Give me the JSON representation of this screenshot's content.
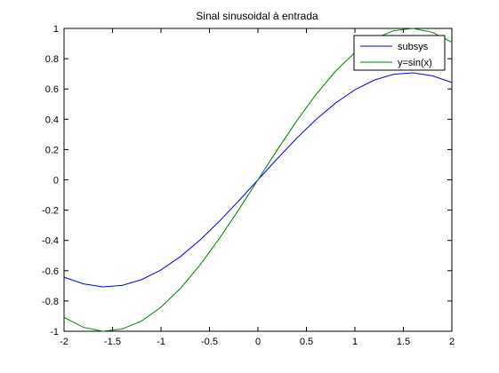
{
  "chart_data": {
    "type": "line",
    "title": "Sinal sinusoidal à entrada",
    "xlabel": "",
    "ylabel": "",
    "xlim": [
      -2,
      2
    ],
    "ylim": [
      -1,
      1
    ],
    "x_ticks": [
      -2,
      -1.5,
      -1,
      -0.5,
      0,
      0.5,
      1,
      1.5,
      2
    ],
    "y_ticks": [
      -1,
      -0.8,
      -0.6,
      -0.4,
      -0.2,
      0,
      0.2,
      0.4,
      0.6,
      0.8,
      1
    ],
    "x_tick_labels": [
      "-2",
      "-1.5",
      "-1",
      "-0.5",
      "0",
      "0.5",
      "1",
      "1.5",
      "2"
    ],
    "y_tick_labels": [
      "-1",
      "-0.8",
      "-0.6",
      "-0.4",
      "-0.2",
      "0",
      "0.2",
      "0.4",
      "0.6",
      "0.8",
      "1"
    ],
    "grid": false,
    "legend_position": "top-right",
    "x": [
      -2,
      -1.8,
      -1.6,
      -1.4,
      -1.2,
      -1,
      -0.8,
      -0.6,
      -0.4,
      -0.2,
      0,
      0.2,
      0.4,
      0.6,
      0.8,
      1,
      1.2,
      1.4,
      1.6,
      1.8,
      2
    ],
    "series": [
      {
        "name": "subsys",
        "color": "#0000ff",
        "values": [
          -0.643,
          -0.687,
          -0.707,
          -0.697,
          -0.659,
          -0.595,
          -0.507,
          -0.399,
          -0.275,
          -0.14,
          0,
          0.14,
          0.275,
          0.399,
          0.507,
          0.595,
          0.659,
          0.697,
          0.707,
          0.687,
          0.643
        ]
      },
      {
        "name": "y=sin(x)",
        "color": "#008000",
        "values": [
          -0.909,
          -0.974,
          -1.0,
          -0.985,
          -0.932,
          -0.841,
          -0.717,
          -0.565,
          -0.389,
          -0.199,
          0,
          0.199,
          0.389,
          0.565,
          0.717,
          0.841,
          0.932,
          0.985,
          1.0,
          0.974,
          0.909
        ]
      }
    ]
  }
}
